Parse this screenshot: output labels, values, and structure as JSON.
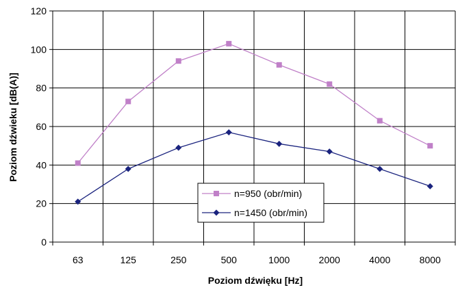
{
  "chart_data": {
    "type": "line",
    "categories": [
      "63",
      "125",
      "250",
      "500",
      "1000",
      "2000",
      "4000",
      "8000"
    ],
    "series": [
      {
        "name": "n=950 (obr/min)",
        "values": [
          41,
          73,
          94,
          103,
          92,
          82,
          63,
          50
        ],
        "color": "#c080c8",
        "marker": "square"
      },
      {
        "name": "n=1450 (obr/min)",
        "values": [
          21,
          38,
          49,
          57,
          51,
          47,
          38,
          29
        ],
        "color": "#1a237e",
        "marker": "diamond"
      }
    ],
    "yticks": [
      "0",
      "20",
      "40",
      "60",
      "80",
      "100",
      "120"
    ],
    "xlabel": "Poziom dźwięku [Hz]",
    "ylabel": "Poziom dźwieku [dB(A)]",
    "ylim": [
      0,
      120
    ],
    "grid": true,
    "legend_position": "inside-lower-center"
  }
}
